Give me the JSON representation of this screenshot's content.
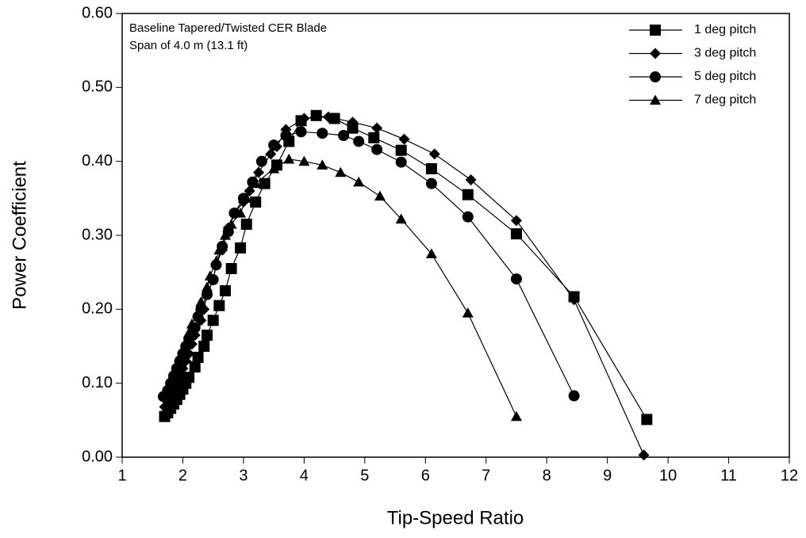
{
  "chart_data": {
    "type": "line",
    "xlabel": "Tip-Speed Ratio",
    "ylabel": "Power Coefficient",
    "annotations": [
      "Baseline Tapered/Twisted CER Blade",
      "Span of 4.0 m (13.1 ft)"
    ],
    "xlim": [
      1,
      12
    ],
    "xticks": [
      1,
      2,
      3,
      4,
      5,
      6,
      7,
      8,
      9,
      10,
      11,
      12
    ],
    "ylim": [
      0,
      0.6
    ],
    "yticks": [
      {
        "value": 0,
        "label": "0.00"
      },
      {
        "value": 0.1,
        "label": "0.10"
      },
      {
        "value": 0.2,
        "label": "0.20"
      },
      {
        "value": 0.3,
        "label": "0.30"
      },
      {
        "value": 0.4,
        "label": "0.40"
      },
      {
        "value": 0.5,
        "label": "0.50"
      },
      {
        "value": 0.6,
        "label": "0.60"
      }
    ],
    "legend": "upper right",
    "series": [
      {
        "name": "1 deg pitch",
        "color": "#000000",
        "marker": "square",
        "x": [
          1.7,
          1.75,
          1.8,
          1.85,
          1.9,
          1.95,
          2.0,
          2.05,
          2.1,
          2.2,
          2.25,
          2.35,
          2.4,
          2.5,
          2.6,
          2.7,
          2.8,
          2.95,
          3.05,
          3.2,
          3.35,
          3.55,
          3.75,
          3.95,
          4.2,
          4.5,
          4.8,
          5.15,
          5.6,
          6.1,
          6.7,
          7.5,
          8.45,
          9.65
        ],
        "values": [
          0.055,
          0.06,
          0.066,
          0.072,
          0.078,
          0.085,
          0.092,
          0.1,
          0.108,
          0.122,
          0.135,
          0.15,
          0.165,
          0.185,
          0.205,
          0.225,
          0.255,
          0.283,
          0.315,
          0.345,
          0.37,
          0.395,
          0.427,
          0.455,
          0.462,
          0.458,
          0.445,
          0.432,
          0.415,
          0.39,
          0.355,
          0.302,
          0.217,
          0.051
        ]
      },
      {
        "name": "3 deg pitch",
        "color": "#000000",
        "marker": "diamond",
        "x": [
          1.7,
          1.75,
          1.8,
          1.85,
          1.9,
          1.95,
          2.0,
          2.05,
          2.1,
          2.15,
          2.2,
          2.3,
          2.35,
          2.4,
          2.5,
          2.55,
          2.65,
          2.75,
          2.85,
          3.0,
          3.1,
          3.25,
          3.45,
          3.55,
          3.7,
          4.0,
          4.4,
          4.8,
          5.2,
          5.65,
          6.15,
          6.75,
          7.5,
          8.45,
          9.6
        ],
        "values": [
          0.068,
          0.075,
          0.083,
          0.09,
          0.1,
          0.11,
          0.12,
          0.13,
          0.14,
          0.153,
          0.165,
          0.185,
          0.2,
          0.22,
          0.24,
          0.26,
          0.28,
          0.31,
          0.33,
          0.345,
          0.36,
          0.385,
          0.41,
          0.42,
          0.443,
          0.458,
          0.46,
          0.453,
          0.445,
          0.43,
          0.41,
          0.375,
          0.32,
          0.213,
          0.003
        ]
      },
      {
        "name": "5 deg pitch",
        "color": "#000000",
        "marker": "circle",
        "x": [
          1.68,
          1.75,
          1.8,
          1.85,
          1.9,
          1.95,
          2.0,
          2.05,
          2.1,
          2.2,
          2.25,
          2.3,
          2.4,
          2.5,
          2.55,
          2.65,
          2.75,
          2.85,
          3.0,
          3.15,
          3.3,
          3.5,
          3.7,
          3.95,
          4.3,
          4.65,
          4.9,
          5.2,
          5.6,
          6.1,
          6.7,
          7.5,
          8.45
        ],
        "values": [
          0.082,
          0.09,
          0.1,
          0.11,
          0.12,
          0.13,
          0.14,
          0.15,
          0.16,
          0.175,
          0.19,
          0.2,
          0.22,
          0.24,
          0.26,
          0.285,
          0.305,
          0.33,
          0.35,
          0.372,
          0.4,
          0.422,
          0.435,
          0.44,
          0.438,
          0.435,
          0.427,
          0.416,
          0.399,
          0.37,
          0.325,
          0.241,
          0.083
        ]
      },
      {
        "name": "7 deg pitch",
        "color": "#000000",
        "marker": "triangle",
        "x": [
          1.7,
          1.75,
          1.8,
          1.85,
          1.9,
          1.95,
          2.0,
          2.05,
          2.1,
          2.15,
          2.25,
          2.3,
          2.4,
          2.45,
          2.55,
          2.6,
          2.7,
          2.8,
          2.95,
          3.05,
          3.2,
          3.5,
          3.75,
          4.0,
          4.3,
          4.6,
          4.9,
          5.25,
          5.6,
          6.1,
          6.7,
          7.5
        ],
        "values": [
          0.085,
          0.095,
          0.105,
          0.115,
          0.125,
          0.135,
          0.145,
          0.155,
          0.168,
          0.18,
          0.195,
          0.21,
          0.23,
          0.245,
          0.265,
          0.28,
          0.3,
          0.315,
          0.33,
          0.35,
          0.37,
          0.39,
          0.403,
          0.4,
          0.395,
          0.385,
          0.372,
          0.353,
          0.322,
          0.275,
          0.195,
          0.055
        ]
      }
    ]
  }
}
